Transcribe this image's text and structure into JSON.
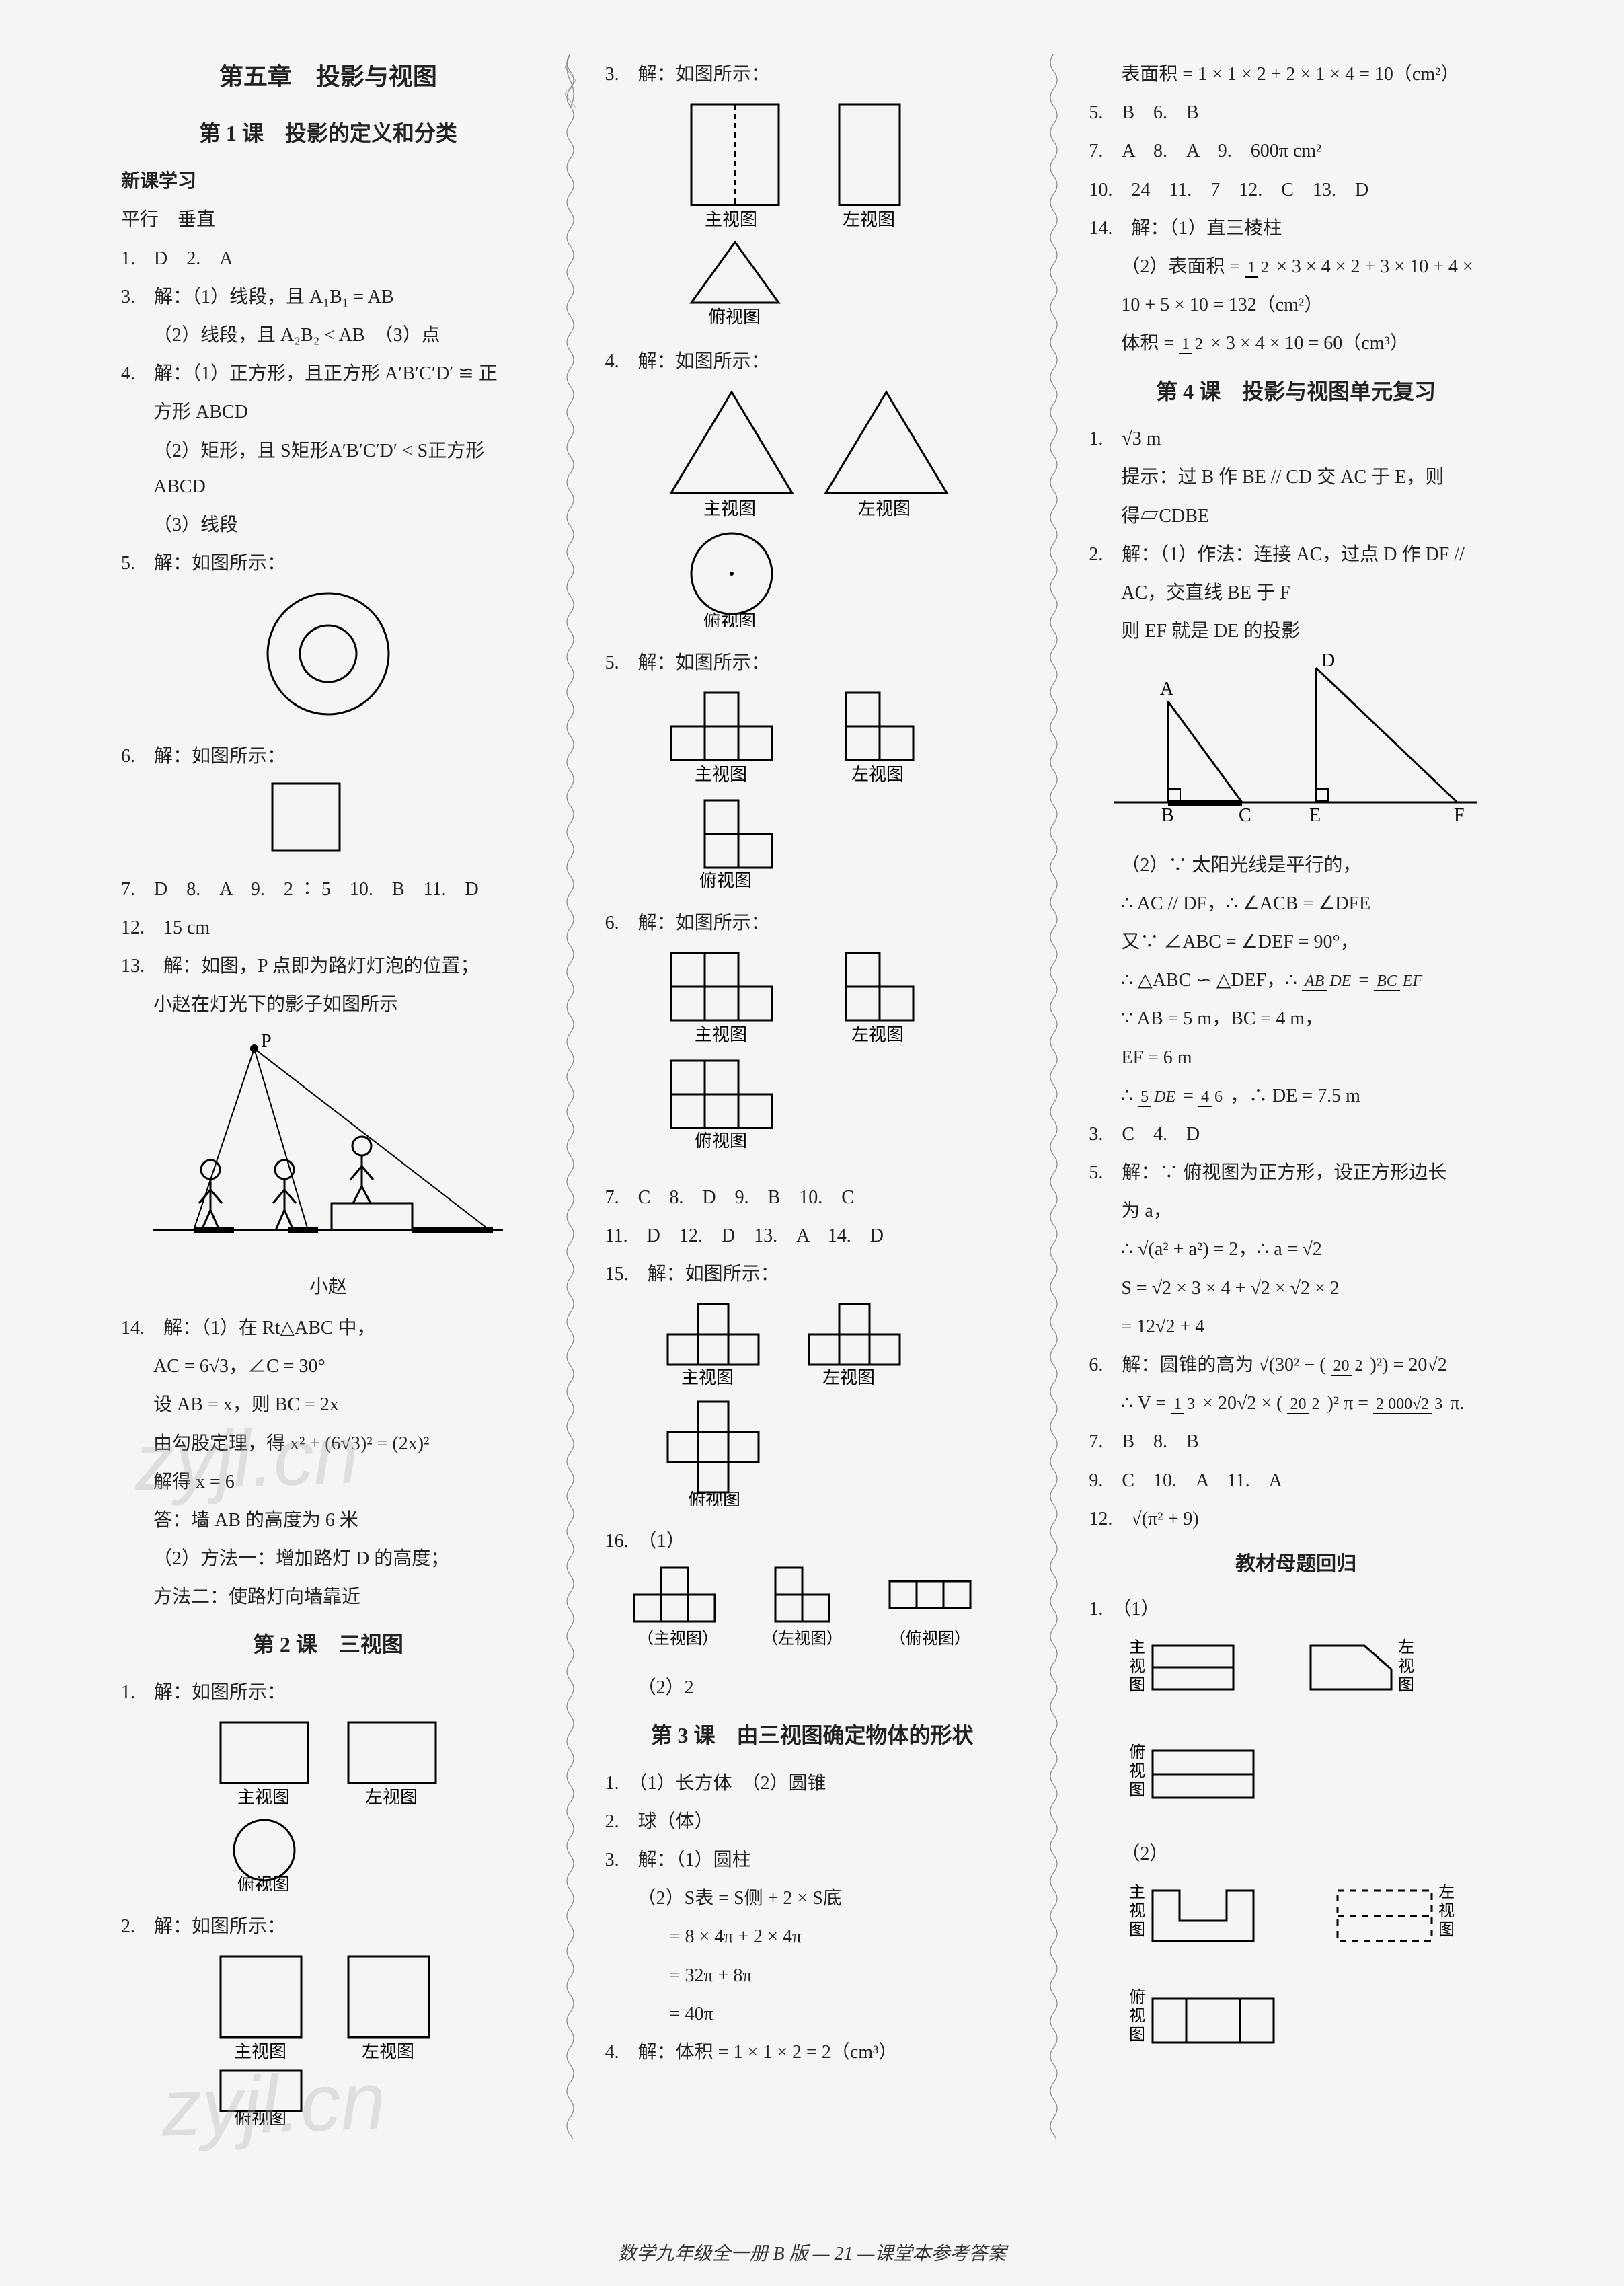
{
  "chapter": "第五章　投影与视图",
  "lesson1": "第 1 课　投影的定义和分类",
  "new_study": "新课学习",
  "l1_t0": "平行　垂直",
  "l1_a": "1.　D　2.　A",
  "l1_3": "3.　解：（1）线段，且 A₁B₁ = AB",
  "l1_3b": "（2）线段，且 A₂B₂ < AB　（3）点",
  "l1_4a": "4.　解：（1）正方形，且正方形 A′B′C′D′ ≌ 正",
  "l1_4a2": "方形 ABCD",
  "l1_4b": "（2）矩形，且 S矩形A′B′C′D′ < S正方形ABCD",
  "l1_4c": "（3）线段",
  "l1_5": "5.　解：如图所示：",
  "l1_6": "6.　解：如图所示：",
  "l1_row1": "7.　D　8.　A　9.　2 ∶ 5　10.　B　11.　D",
  "l1_12": "12.　15 cm",
  "l1_13a": "13.　解：如图，P 点即为路灯灯泡的位置；",
  "l1_13b": "小赵在灯光下的影子如图所示",
  "xiaozhao": "小赵",
  "l1_14a": "14.　解：（1）在 Rt△ABC 中，",
  "l1_14b": "AC = 6√3，∠C = 30°",
  "l1_14c": "设 AB = x，则 BC = 2x",
  "l1_14d": "由勾股定理，得 x² + (6√3)² = (2x)²",
  "l1_14e": "解得 x = 6",
  "l1_14f": "答：墙 AB 的高度为 6 米",
  "l1_14g": "（2）方法一：增加路灯 D 的高度；",
  "l1_14h": "方法二：使路灯向墙靠近",
  "lesson2": "第 2 课　三视图",
  "l2_1": "1.　解：如图所示：",
  "l2_2": "2.　解：如图所示：",
  "zhushitu": "主视图",
  "zuoshitu": "左视图",
  "fushitu": "俯视图",
  "l2_c2_3": "3.　解：如图所示：",
  "l2_c2_4": "4.　解：如图所示：",
  "l2_c2_5": "5.　解：如图所示：",
  "l2_c2_6": "6.　解：如图所示：",
  "l2_row2": "7.　C　8.　D　9.　B　10.　C",
  "l2_row3": "11.　D　12.　D　13.　A　14.　D",
  "l2_15": "15.　解：如图所示：",
  "l2_16": "16.　（1）",
  "l2_16b": "（2）2",
  "label_zhu": "（主视图）",
  "label_zuo": "（左视图）",
  "label_fu": "（俯视图）",
  "lesson3": "第 3 课　由三视图确定物体的形状",
  "l3_1": "1.　（1）长方体　（2）圆锥",
  "l3_2": "2.　球（体）",
  "l3_3a": "3.　解：（1）圆柱",
  "l3_3b": "（2）S表 = S侧 + 2 × S底",
  "l3_3c": "= 8 × 4π + 2 × 4π",
  "l3_3d": "= 32π + 8π",
  "l3_3e": "= 40π",
  "l3_4": "4.　解：体积 = 1 × 1 × 2 = 2（cm³）",
  "c3_top": "表面积 = 1 × 1 × 2 + 2 × 1 × 4 = 10（cm²）",
  "c3_5_6": "5.　B　6.　B",
  "c3_7_9": "7.　A　8.　A　9.　600π cm²",
  "c3_10_13": "10.　24　11.　7　12.　C　13.　D",
  "c3_14a": "14.　解：（1）直三棱柱",
  "c3_14b": "（2）表面积 =",
  "c3_14b_rest": " × 3 × 4 × 2 + 3 × 10 + 4 ×",
  "c3_14c": "10 + 5 × 10 = 132（cm²）",
  "c3_14d": "体积 =",
  "c3_14d_rest": " × 3 × 4 × 10 = 60（cm³）",
  "lesson4": "第 4 课　投影与视图单元复习",
  "l4_1": "1.　√3 m",
  "l4_1h": "提示：过 B 作 BE // CD 交 AC 于 E，则",
  "l4_1h2": "得▱CDBE",
  "l4_2a": "2.　解：（1）作法：连接 AC，过点 D 作 DF //",
  "l4_2b": "AC，交直线 BE 于 F",
  "l4_2c": "则 EF 就是 DE 的投影",
  "l4_2d": "（2）∵ 太阳光线是平行的，",
  "l4_2e": "∴ AC // DF，∴ ∠ACB = ∠DFE",
  "l4_2f": "又∵ ∠ABC = ∠DEF = 90°，",
  "l4_2g": "∴ △ABC ∽ △DEF，∴ ",
  "l4_2g_frac1n": "AB",
  "l4_2g_frac1d": "DE",
  "l4_2g_eq": " = ",
  "l4_2g_frac2n": "BC",
  "l4_2g_frac2d": "EF",
  "l4_2h": "∵ AB = 5 m，BC = 4 m，",
  "l4_2i": "EF = 6 m",
  "l4_2j_pre": "∴ ",
  "l4_2j_f1n": "5",
  "l4_2j_f1d": "DE",
  "l4_2j_eq": " = ",
  "l4_2j_f2n": "4",
  "l4_2j_f2d": "6",
  "l4_2j_post": "，∴ DE = 7.5 m",
  "l4_3_4": "3.　C　4.　D",
  "l4_5a": "5.　解：∵ 俯视图为正方形，设正方形边长",
  "l4_5a2": "为 a，",
  "l4_5b": "∴ √(a² + a²) = 2，∴ a = √2",
  "l4_5c": "S = √2 × 3 × 4 + √2 × √2 × 2",
  "l4_5d": "= 12√2 + 4",
  "l4_6a": "6.　解：圆锥的高为 √(30² − (",
  "l4_6a_fn": "20",
  "l4_6a_fd": "2",
  "l4_6a_post": ")²) = 20√2",
  "l4_6b_pre": "∴ V = ",
  "l4_6b_f1n": "1",
  "l4_6b_f1d": "3",
  "l4_6b_mid1": " × 20√2 × (",
  "l4_6b_f2n": "20",
  "l4_6b_f2d": "2",
  "l4_6b_mid2": ")² π = ",
  "l4_6b_f3n": "2 000√2",
  "l4_6b_f3d": "3",
  "l4_6b_post": " π.",
  "l4_7_8": "7.　B　8.　B",
  "l4_9_11": "9.　C　10.　A　11.　A",
  "l4_12": "12.　√(π² + 9)",
  "mother": "教材母题回归",
  "m1_1": "1.　（1）",
  "zhu_v": "主视图",
  "zuo_v": "左视图",
  "fu_v": "俯视图",
  "m1_2": "（2）",
  "footer": "数学九年级全一册 B 版 — 21 —课堂本参考答案",
  "watermark": "zyjl.cn",
  "frac_half_n": "1",
  "frac_half_d": "2",
  "P_label": "P",
  "A": "A",
  "B": "B",
  "C": "C",
  "D": "D",
  "E": "E",
  "F": "F"
}
